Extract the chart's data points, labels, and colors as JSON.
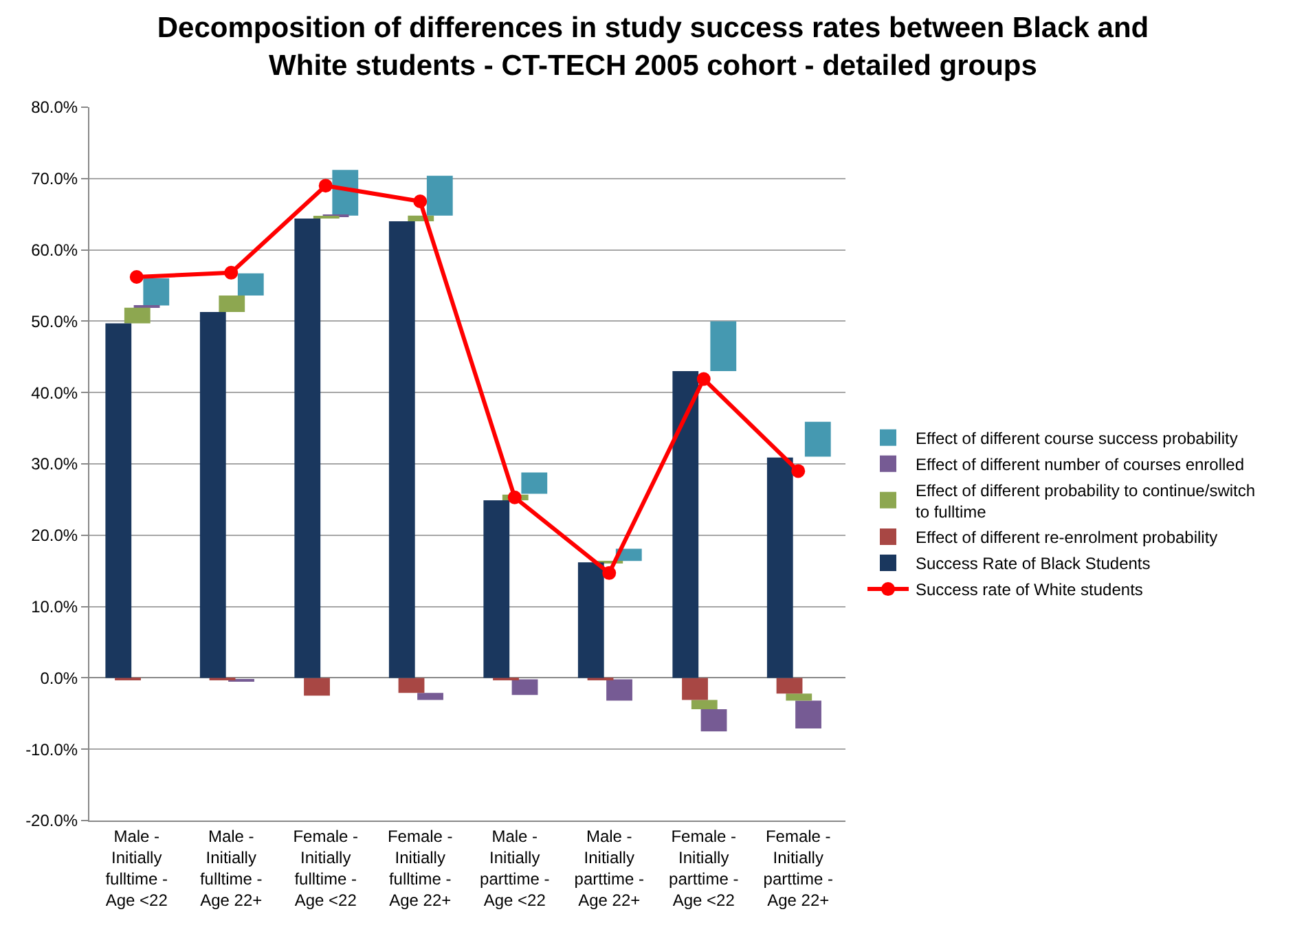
{
  "chart_data": {
    "type": "bar",
    "title": "Decomposition of differences in study success rates between Black and White students - CT-TECH 2005 cohort - detailed groups",
    "categories": [
      "Male - Initially fulltime - Age <22",
      "Male - Initially fulltime - Age 22+",
      "Female - Initially fulltime - Age <22",
      "Female - Initially fulltime - Age 22+",
      "Male - Initially parttime - Age <22",
      "Male - Initially parttime - Age 22+",
      "Female - Initially parttime - Age <22",
      "Female - Initially parttime - Age 22+"
    ],
    "series": [
      {
        "name": "Effect of different course success probability",
        "color": "#4599b1",
        "base": [
          52.2,
          53.6,
          64.8,
          64.8,
          25.8,
          16.4,
          43.0,
          31.0
        ],
        "values": [
          3.8,
          3.1,
          6.4,
          5.6,
          3.0,
          1.7,
          7.0,
          4.9
        ]
      },
      {
        "name": "Effect of different number of courses enrolled",
        "color": "#765b94",
        "base": [
          51.9,
          -0.2,
          64.6,
          -2.1,
          -0.2,
          -0.2,
          -4.4,
          -3.2
        ],
        "values": [
          0.3,
          -0.3,
          0.2,
          -1.0,
          -2.2,
          -3.0,
          -3.1,
          -3.9
        ]
      },
      {
        "name": "Effect of different probability to continue/switch to fulltime",
        "color": "#8da750",
        "base": [
          49.7,
          51.3,
          64.4,
          64.0,
          24.9,
          16.2,
          -3.1,
          -2.2
        ],
        "values": [
          2.2,
          2.3,
          0.2,
          0.8,
          0.8,
          0.2,
          -1.3,
          -1.0
        ]
      },
      {
        "name": "Effect of different re-enrolment probability",
        "color": "#a84744",
        "base": [
          0,
          0,
          0,
          0,
          0,
          0,
          0,
          0
        ],
        "values": [
          -0.3,
          -0.2,
          -2.5,
          -2.1,
          -0.2,
          -0.2,
          -3.1,
          -2.2
        ]
      },
      {
        "name": "Success Rate of Black Students",
        "color": "#1a375e",
        "base": [
          0,
          0,
          0,
          0,
          0,
          0,
          0,
          0
        ],
        "values": [
          49.7,
          51.3,
          64.4,
          64.0,
          24.9,
          16.2,
          43.0,
          30.9
        ]
      },
      {
        "name": "Success rate of White students",
        "type": "line",
        "color": "#ff0000",
        "marker": "circle",
        "values": [
          56.2,
          56.8,
          69.0,
          66.8,
          25.3,
          14.7,
          41.9,
          29.0
        ]
      }
    ],
    "ylim": [
      -20,
      80
    ],
    "yticks": [
      {
        "value": -20,
        "label": "-20.0%"
      },
      {
        "value": -10,
        "label": "-10.0%"
      },
      {
        "value": 0,
        "label": "0.0%"
      },
      {
        "value": 10,
        "label": "10.0%"
      },
      {
        "value": 20,
        "label": "20.0%"
      },
      {
        "value": 30,
        "label": "30.0%"
      },
      {
        "value": 40,
        "label": "40.0%"
      },
      {
        "value": 50,
        "label": "50.0%"
      },
      {
        "value": 60,
        "label": "60.0%"
      },
      {
        "value": 70,
        "label": "70.0%"
      },
      {
        "value": 80,
        "label": "80.0%"
      }
    ],
    "grid": "y",
    "legend": "right"
  }
}
